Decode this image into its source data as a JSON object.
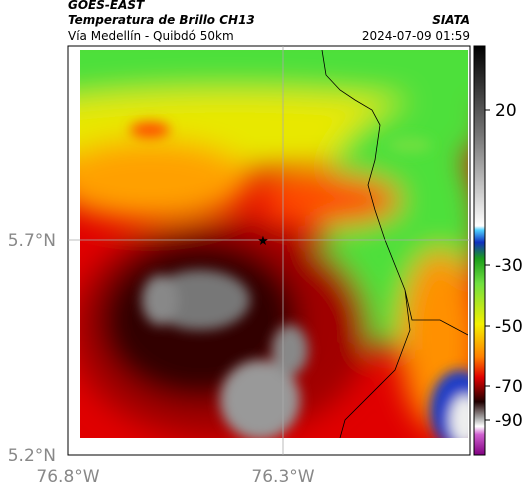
{
  "header": {
    "source": "GOES-EAST",
    "title": "Temperatura de Brillo CH13",
    "brand": "SIATA",
    "subtitle": "Vía Medellín - Quibdó 50km",
    "timestamp": "2024-07-09 01:59"
  },
  "axes": {
    "lat_labels": [
      "5.7°N",
      "5.2°N"
    ],
    "lon_labels": [
      "76.8°W",
      "76.3°W"
    ]
  },
  "colorbar": {
    "tick_labels": [
      "20",
      "-30",
      "-50",
      "-70",
      "-90"
    ]
  }
}
